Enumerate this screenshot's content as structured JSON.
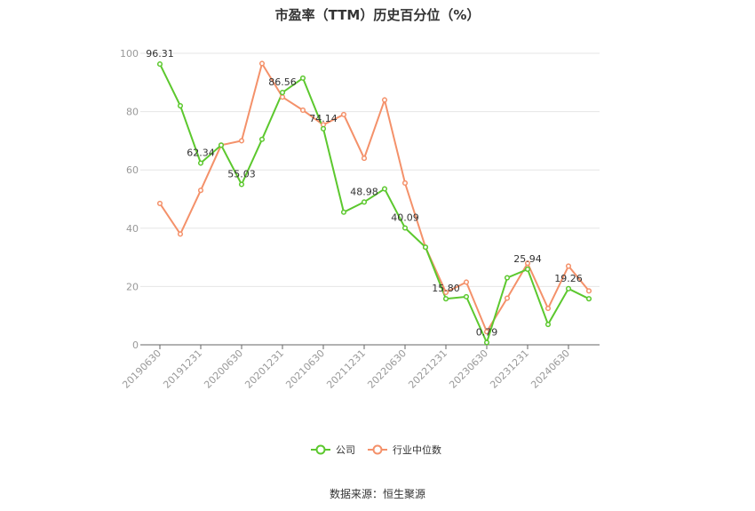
{
  "chart_data": {
    "type": "line",
    "title": "市盈率（TTM）历史百分位（%）",
    "ylim": [
      0,
      100
    ],
    "yticks": [
      0,
      20,
      40,
      60,
      80,
      100
    ],
    "x": [
      "20190630",
      "20190930",
      "20191231",
      "20200331",
      "20200630",
      "20200930",
      "20201231",
      "20210331",
      "20210630",
      "20210930",
      "20211231",
      "20220331",
      "20220630",
      "20220930",
      "20221231",
      "20230331",
      "20230630",
      "20230930",
      "20231231",
      "20240331",
      "20240630",
      "20240930"
    ],
    "xtick_labels": [
      "20190630",
      "20191231",
      "20200630",
      "20201231",
      "20210630",
      "20211231",
      "20220630",
      "20221231",
      "20230630",
      "20231231",
      "20240630"
    ],
    "series": [
      {
        "name": "公司",
        "color": "#5cc82e",
        "values": [
          96.31,
          82.0,
          62.34,
          68.5,
          55.03,
          70.5,
          86.56,
          91.5,
          74.14,
          45.5,
          48.98,
          53.5,
          40.09,
          33.5,
          15.8,
          16.5,
          0.79,
          23.0,
          25.94,
          7.0,
          19.26,
          15.8
        ]
      },
      {
        "name": "行业中位数",
        "color": "#f4916a",
        "values": [
          48.5,
          38.0,
          53.0,
          68.5,
          70.0,
          96.5,
          85.0,
          80.5,
          75.5,
          79.0,
          64.0,
          84.0,
          55.5,
          33.5,
          18.0,
          21.5,
          4.5,
          16.0,
          28.0,
          12.5,
          27.0,
          18.5
        ]
      }
    ],
    "data_labels": [
      {
        "series": 0,
        "index": 0,
        "text": "96.31"
      },
      {
        "series": 0,
        "index": 2,
        "text": "62.34"
      },
      {
        "series": 0,
        "index": 4,
        "text": "55.03"
      },
      {
        "series": 0,
        "index": 6,
        "text": "86.56"
      },
      {
        "series": 0,
        "index": 8,
        "text": "74.14"
      },
      {
        "series": 0,
        "index": 10,
        "text": "48.98"
      },
      {
        "series": 0,
        "index": 12,
        "text": "40.09"
      },
      {
        "series": 0,
        "index": 14,
        "text": "15.80"
      },
      {
        "series": 0,
        "index": 16,
        "text": "0.79"
      },
      {
        "series": 0,
        "index": 18,
        "text": "25.94"
      },
      {
        "series": 0,
        "index": 20,
        "text": "19.26"
      }
    ],
    "legend": {
      "position": "bottom",
      "items": [
        "公司",
        "行业中位数"
      ]
    },
    "grid": true
  },
  "source": "数据来源：恒生聚源"
}
